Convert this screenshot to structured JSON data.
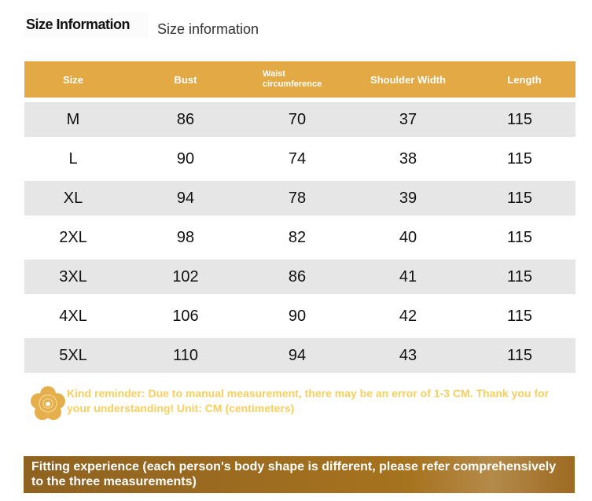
{
  "title": "Size Information",
  "subtitle": "Size information",
  "table": {
    "headers": [
      "Size",
      "Bust",
      "Waist circumference",
      "Shoulder Width",
      "Length"
    ],
    "rows": [
      [
        "M",
        "86",
        "70",
        "37",
        "115"
      ],
      [
        "L",
        "90",
        "74",
        "38",
        "115"
      ],
      [
        "XL",
        "94",
        "78",
        "39",
        "115"
      ],
      [
        "2XL",
        "98",
        "82",
        "40",
        "115"
      ],
      [
        "3XL",
        "102",
        "86",
        "41",
        "115"
      ],
      [
        "4XL",
        "106",
        "90",
        "42",
        "115"
      ],
      [
        "5XL",
        "110",
        "94",
        "43",
        "115"
      ]
    ]
  },
  "reminder": "Kind reminder: Due to manual measurement, there may be an error of 1-3 CM. Thank you for your understanding! Unit: CM (centimeters)",
  "fitting": "Fitting experience (each person's body shape is different, please refer comprehensively to the three measurements)",
  "colors": {
    "header": "#e2a944",
    "reminder": "#f7cf5e",
    "bar": "#9a6a22"
  }
}
